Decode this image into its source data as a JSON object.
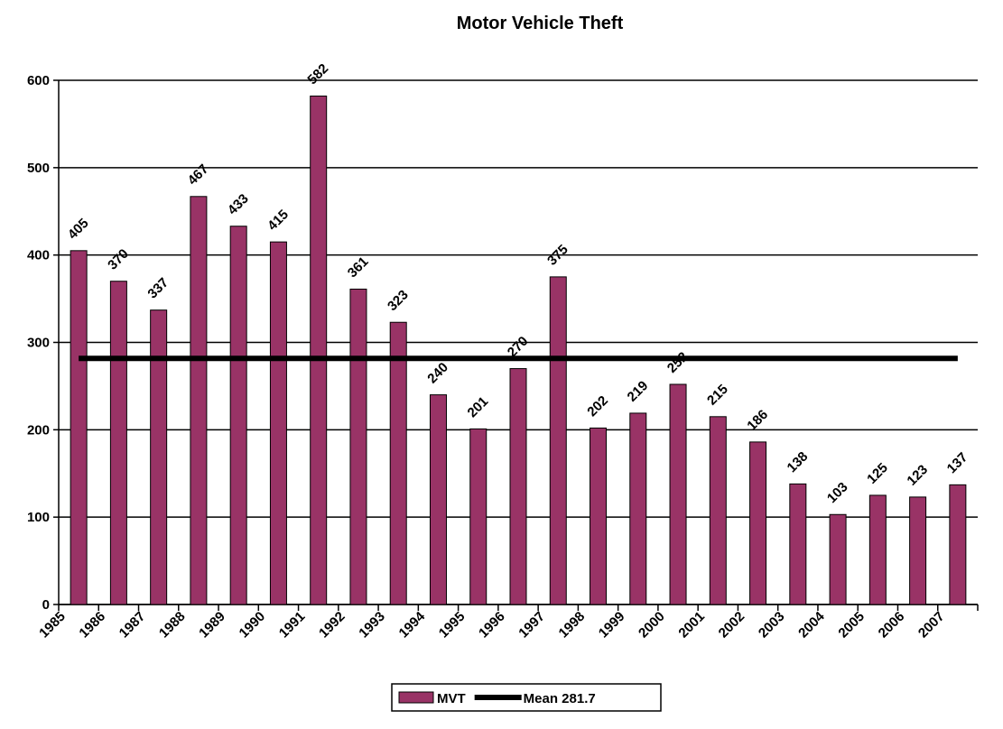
{
  "chart_data": {
    "type": "bar",
    "title": "Motor Vehicle Theft",
    "categories": [
      "1985",
      "1986",
      "1987",
      "1988",
      "1989",
      "1990",
      "1991",
      "1992",
      "1993",
      "1994",
      "1995",
      "1996",
      "1997",
      "1998",
      "1999",
      "2000",
      "2001",
      "2002",
      "2003",
      "2004",
      "2005",
      "2006",
      "2007"
    ],
    "series": [
      {
        "name": "MVT",
        "color": "#993366",
        "values": [
          405,
          370,
          337,
          467,
          433,
          415,
          582,
          361,
          323,
          240,
          201,
          270,
          375,
          202,
          219,
          252,
          215,
          186,
          138,
          103,
          125,
          123,
          137
        ]
      },
      {
        "name": "Mean 281.7",
        "type": "line",
        "color": "#000000",
        "values": [
          281.7,
          281.7,
          281.7,
          281.7,
          281.7,
          281.7,
          281.7,
          281.7,
          281.7,
          281.7,
          281.7,
          281.7,
          281.7,
          281.7,
          281.7,
          281.7,
          281.7,
          281.7,
          281.7,
          281.7,
          281.7,
          281.7,
          281.7
        ]
      }
    ],
    "ylim": [
      0,
      600
    ],
    "yticks": [
      0,
      100,
      200,
      300,
      400,
      500,
      600
    ],
    "grid": true,
    "legend": "bottom"
  }
}
